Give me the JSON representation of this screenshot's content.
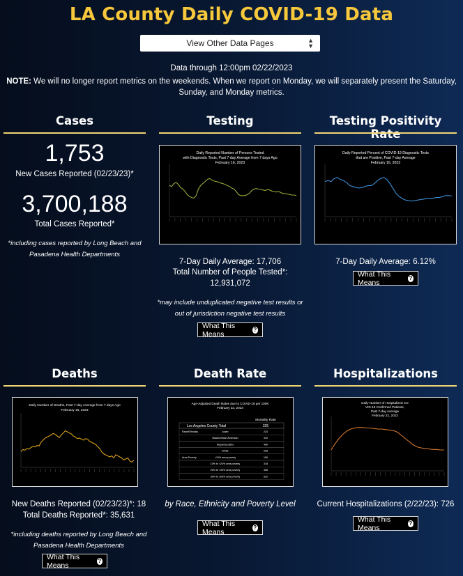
{
  "page": {
    "title": "LA County Daily COVID-19 Data",
    "select_label": "View Other Data Pages",
    "data_through": "Data through 12:00pm 02/22/2023",
    "note_label": "NOTE:",
    "note_text": " We will no longer report metrics on the weekends. When we report on Monday, we will separately present the Saturday, Sunday, and Monday metrics."
  },
  "what_this_means_label": "What This Means",
  "cases": {
    "heading": "Cases",
    "new_value": "1,753",
    "new_label": "New Cases Reported (02/23/23)*",
    "total_value": "3,700,188",
    "total_label": "Total Cases Reported*",
    "footnote": "*including cases reported by Long Beach and Pasadena Health Departments"
  },
  "testing": {
    "heading": "Testing",
    "chart_title": [
      "Daily Reported Number of Persons Tested",
      "with Diagnostic Tests, Past 7-day Average from 7 days Ago",
      "February 16, 2023"
    ],
    "avg_line": "7-Day Daily Average: 17,706",
    "total_line1": "Total Number of People Tested*:",
    "total_line2": "12,931,072",
    "footnote": "*may include unduplicated negative test results or out of jurisdiction negative test results"
  },
  "positivity": {
    "heading": "Testing Positivity Rate",
    "chart_title": [
      "Daily Reported Percent of COVID-19 Diagnostic Tests",
      "that are Positive, Past 7-day Average",
      "February 16, 2023"
    ],
    "avg_line": "7-Day Daily Average: 6.12%"
  },
  "deaths": {
    "heading": "Deaths",
    "chart_title": [
      "Daily Number of Deaths, Past 7-day Average from 7 days Ago",
      "February 16, 2023"
    ],
    "new_line": "New Deaths Reported (02/23/23)*: 18",
    "total_line": "Total Deaths Reported*: 35,631",
    "footnote": "*including deaths reported by Long Beach and Pasadena Health Departments"
  },
  "death_rate": {
    "heading": "Death Rate",
    "chart_title": [
      "Age-Adjusted Death Rates due to COVID-19 per 100K",
      "February 22, 2023"
    ],
    "table_header": "Mortality Rate",
    "total_label": "Los Angeles County Total",
    "total_value": "325",
    "rows": [
      {
        "group": "Race/Ethnicity",
        "label": "Asian",
        "value": "224"
      },
      {
        "group": "",
        "label": "Black/African American",
        "value": "440"
      },
      {
        "group": "",
        "label": "Hispanic/Latino",
        "value": "480"
      },
      {
        "group": "",
        "label": "White",
        "value": "208"
      },
      {
        "group": "Area Poverty",
        "label": "<10% area poverty",
        "value": "196"
      },
      {
        "group": "",
        "label": "10% to <20% area poverty",
        "value": "318"
      },
      {
        "group": "",
        "label": "20% to <30% area poverty",
        "value": "456"
      },
      {
        "group": "",
        "label": "30% to 100% area poverty",
        "value": "522"
      }
    ],
    "caption": "by Race, Ethnicity and Poverty Level"
  },
  "hospitalizations": {
    "heading": "Hospitalizations",
    "chart_title": [
      "Daily Number of Hospitalized CO",
      "VID-19 Confirmed Patients,",
      "Past 7-day Average",
      "February 22, 2023"
    ],
    "current_line": "Current Hospitalizations (2/22/23): 726"
  },
  "chart_data": [
    {
      "type": "line",
      "name": "testing",
      "title": "Daily Reported Number of Persons Tested with Diagnostic Tests, Past 7-day Average from 7 days Ago February 16, 2023",
      "color": "#9aa83a",
      "values": [
        62,
        60,
        66,
        68,
        64,
        58,
        55,
        50,
        44,
        40,
        38,
        37,
        42,
        55,
        62,
        66,
        70,
        74,
        76,
        73,
        71,
        70,
        69,
        67,
        66,
        64,
        62,
        60,
        57,
        55,
        50,
        44,
        42,
        42,
        42,
        44,
        47,
        52,
        55,
        56,
        55,
        54,
        53,
        52,
        54,
        53,
        51,
        50,
        49,
        50,
        48,
        46,
        46,
        45,
        44,
        43,
        43,
        42
      ],
      "ylim": [
        0,
        100
      ]
    },
    {
      "type": "line",
      "name": "positivity",
      "title": "Daily Reported Percent of COVID-19 Diagnostic Tests that are Positive, Past 7-day Average February 16, 2023",
      "color": "#3d8fd6",
      "values": [
        70,
        72,
        70,
        76,
        78,
        74,
        72,
        68,
        62,
        60,
        58,
        57,
        58,
        60,
        62,
        62,
        66,
        72,
        76,
        78,
        74,
        66,
        56,
        46,
        40,
        36,
        33,
        32,
        31,
        32,
        33,
        34,
        35,
        36,
        36,
        37,
        38,
        38,
        40,
        42,
        42,
        41
      ],
      "ylim": [
        0,
        100
      ]
    },
    {
      "type": "line",
      "name": "deaths",
      "title": "Daily Number of Deaths, Past 7-day Average from 7 days Ago February 16, 2023",
      "color": "#d8a11a",
      "values": [
        30,
        34,
        33,
        36,
        35,
        38,
        40,
        39,
        42,
        41,
        48,
        52,
        56,
        58,
        60,
        62,
        65,
        63,
        60,
        57,
        62,
        66,
        70,
        68,
        66,
        64,
        60,
        58,
        55,
        56,
        54,
        52,
        55,
        54,
        50,
        48,
        46,
        44,
        40,
        36,
        30,
        26,
        24,
        22,
        20,
        22,
        18,
        24,
        22,
        20,
        18,
        14,
        16,
        18,
        12,
        10,
        14
      ],
      "ylim": [
        0,
        100
      ]
    },
    {
      "type": "line",
      "name": "hospitalizations",
      "title": "Daily Number of Hospitalized COVID-19 Confirmed Patients, Past 7-day Average February 22, 2023",
      "color": "#d9782a",
      "values": [
        40,
        52,
        62,
        70,
        76,
        80,
        82,
        83,
        83,
        82,
        82,
        81,
        80,
        80,
        79,
        78,
        77,
        74,
        68,
        62,
        56,
        50,
        46,
        44,
        43,
        42,
        41,
        41,
        40,
        40
      ],
      "ylim": [
        0,
        100
      ]
    }
  ]
}
